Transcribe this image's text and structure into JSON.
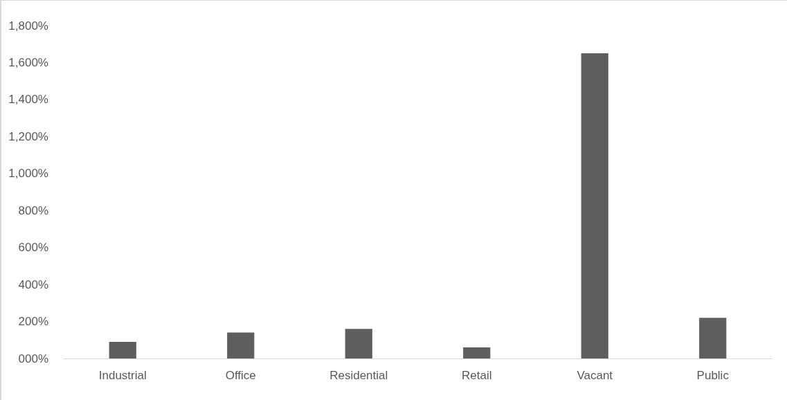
{
  "chart_data": {
    "type": "bar",
    "categories": [
      "Industrial",
      "Office",
      "Residential",
      "Retail",
      "Vacant",
      "Public"
    ],
    "values": [
      90,
      140,
      160,
      60,
      1650,
      220
    ],
    "color": "#5e5e5e",
    "ylim": [
      0,
      1800
    ],
    "yticks": [
      {
        "value": 0,
        "label": "000%"
      },
      {
        "value": 200,
        "label": "200%"
      },
      {
        "value": 400,
        "label": "400%"
      },
      {
        "value": 600,
        "label": "600%"
      },
      {
        "value": 800,
        "label": "800%"
      },
      {
        "value": 1000,
        "label": "1,000%"
      },
      {
        "value": 1200,
        "label": "1,200%"
      },
      {
        "value": 1400,
        "label": "1,400%"
      },
      {
        "value": 1600,
        "label": "1,600%"
      },
      {
        "value": 1800,
        "label": "1,800%"
      }
    ],
    "grid": false
  }
}
